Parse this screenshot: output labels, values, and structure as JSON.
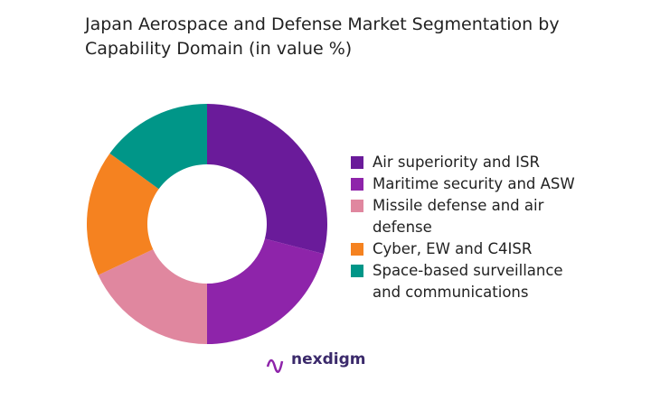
{
  "chart_data": {
    "type": "donut",
    "title": "Japan Aerospace and Defense Market Segmentation by Capability Domain (in value %)",
    "categories": [
      "Air superiority and ISR",
      "Maritime security and ASW",
      "Missile defense and air defense",
      "Cyber, EW and C4ISR",
      "Space-based surveillance and communications"
    ],
    "values": [
      29,
      21,
      18,
      17,
      15
    ],
    "colors": [
      "#6a1b9a",
      "#8e24aa",
      "#e0879f",
      "#f58220",
      "#009688"
    ],
    "legend": "right"
  },
  "logo": "nexdigm"
}
